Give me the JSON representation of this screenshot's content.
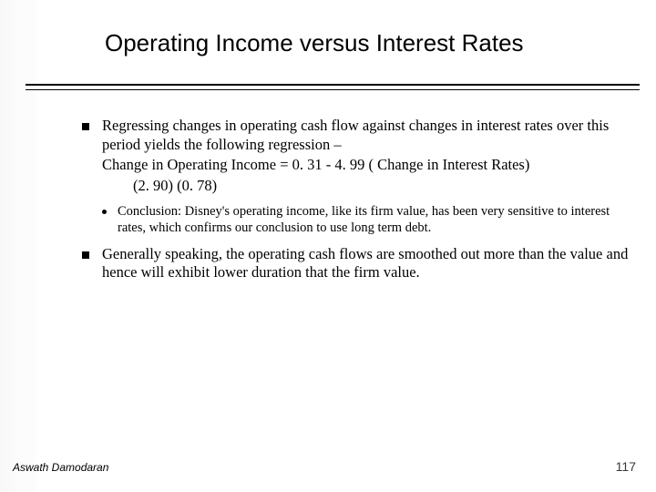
{
  "title": "Operating Income versus Interest Rates",
  "bullets": {
    "b1_line1": "Regressing changes in operating cash flow against changes in interest rates over this period yields the following regression –",
    "b1_eq": "Change in Operating Income = 0. 31 - 4. 99  ( Change in Interest Rates)",
    "b1_tvals": "(2. 90)     (0. 78)",
    "b1_sub": "Conclusion: Disney's operating income, like its firm value, has been very sensitive to interest rates, which confirms our conclusion to use long term debt.",
    "b2": "Generally speaking, the operating cash flows are smoothed out more than the value and hence will exhibit lower duration that the firm value."
  },
  "footer": {
    "author": "Aswath Damodaran",
    "page": "117"
  },
  "colors": {
    "bg": "#ffffff",
    "text": "#000000",
    "pagenum": "#3a3a3a"
  }
}
